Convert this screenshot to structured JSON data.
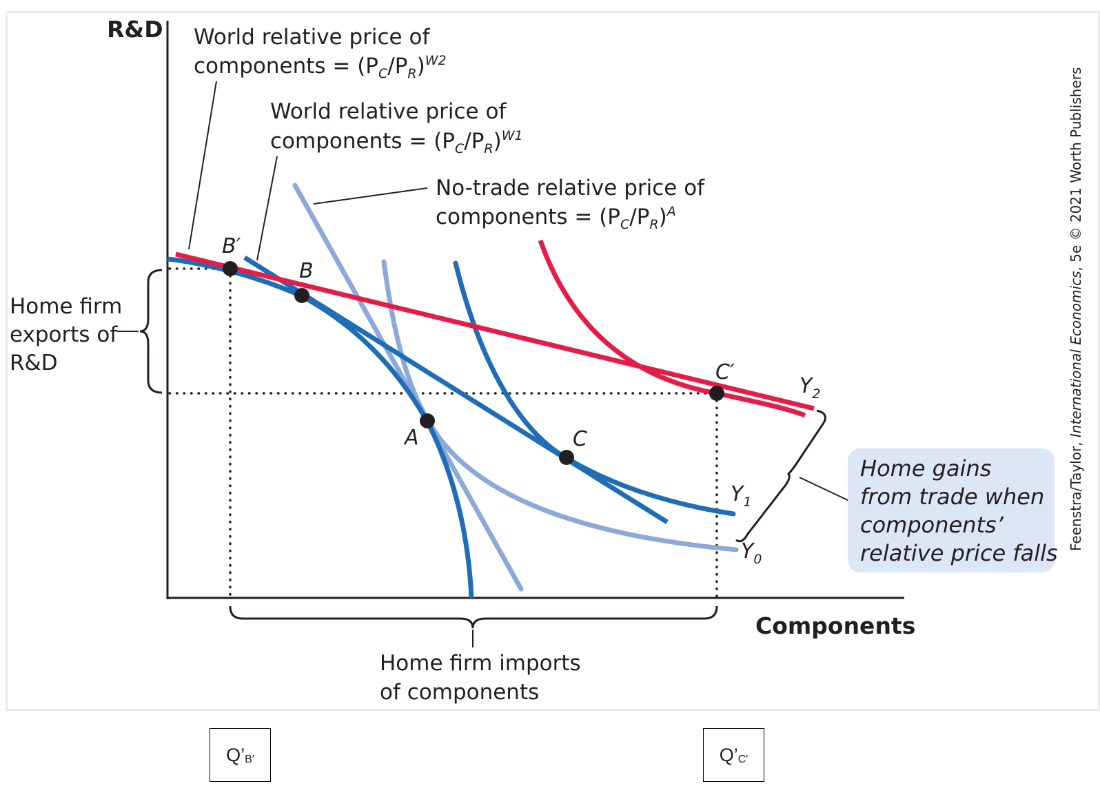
{
  "axes": {
    "y_label": "R&D",
    "x_label": "Components"
  },
  "annotations": {
    "w2": {
      "line1": "World relative price of",
      "line2_prefix": "components = (P",
      "sub_c": "C",
      "slash": "/P",
      "sub_r": "R",
      "close": ")",
      "sup": "W2"
    },
    "w1": {
      "line1": "World relative price of",
      "line2_prefix": "components = (P",
      "sub_c": "C",
      "slash": "/P",
      "sub_r": "R",
      "close": ")",
      "sup": "W1"
    },
    "notrade": {
      "line1": "No-trade relative price of",
      "line2_prefix": "components = (P",
      "sub_c": "C",
      "slash": "/P",
      "sub_r": "R",
      "close": ")",
      "sup": "A"
    },
    "exports": [
      "Home firm",
      "exports of",
      "R&D"
    ],
    "imports": [
      "Home firm imports",
      "of components"
    ],
    "gains": [
      "Home gains",
      "from trade when",
      "components’",
      "relative price falls"
    ],
    "credit_prefix": "Feenstra/Taylor, ",
    "credit_title": "International Economics",
    "credit_suffix": ", 5e © 2021 Worth Publishers"
  },
  "points": {
    "B_prime": "B′",
    "B": "B",
    "A": "A",
    "C": "C",
    "C_prime": "C′"
  },
  "curves": {
    "Y0": {
      "letter": "Y",
      "sub": "0"
    },
    "Y1": {
      "letter": "Y",
      "sub": "1"
    },
    "Y2": {
      "letter": "Y",
      "sub": "2"
    }
  },
  "boxes": {
    "left": {
      "main": "Q’",
      "sub": "B′"
    },
    "right": {
      "main": "Q’",
      "sub": "C′"
    }
  },
  "colors": {
    "red": "#e31c48",
    "dark_blue": "#1f6db5",
    "light_blue": "#8ba9d9",
    "callout_bg": "#dce6f4",
    "text": "#231f20"
  }
}
